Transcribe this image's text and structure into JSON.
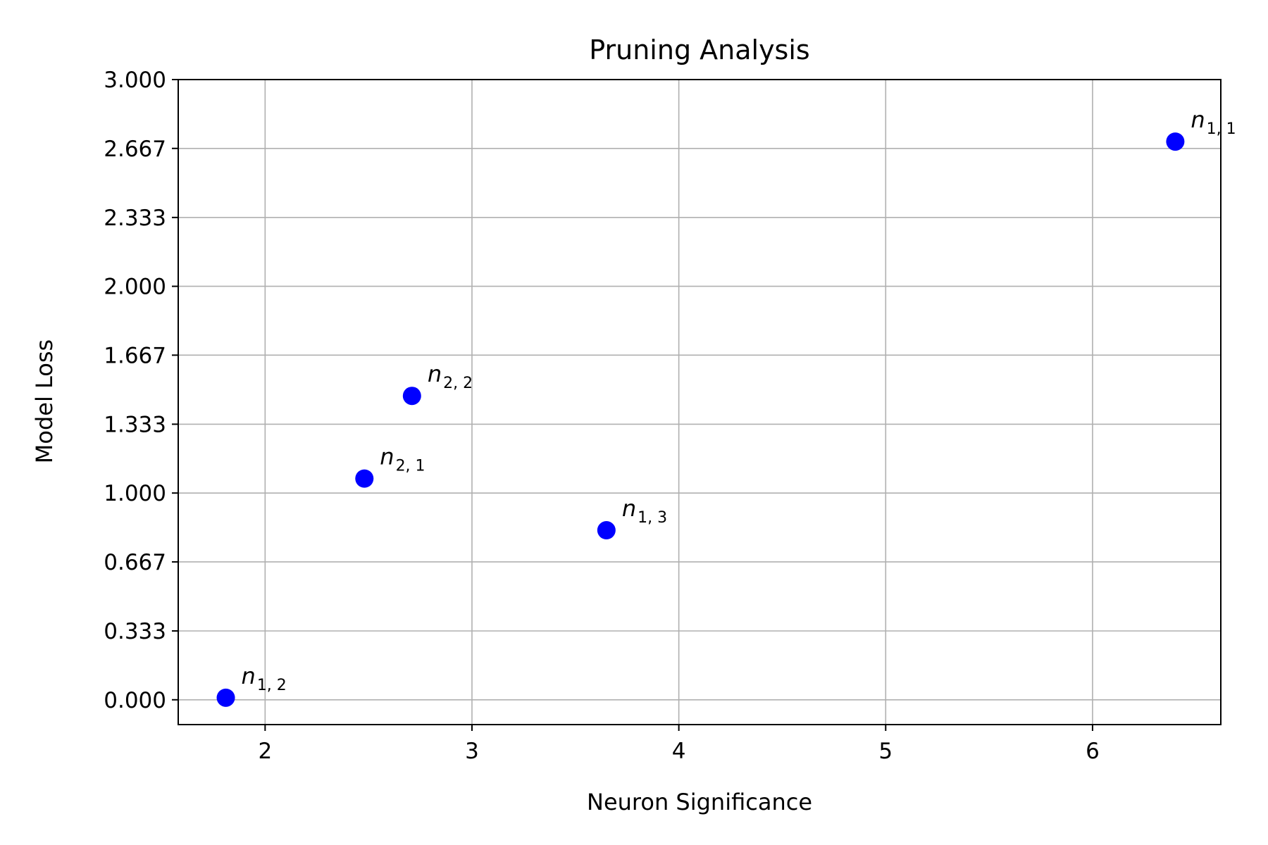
{
  "chart_data": {
    "type": "scatter",
    "title": "Pruning Analysis",
    "xlabel": "Neuron Significance",
    "ylabel": "Model Loss",
    "xlim": [
      1.58,
      6.62
    ],
    "ylim": [
      -0.12,
      3.0
    ],
    "xticks": [
      2,
      3,
      4,
      5,
      6
    ],
    "xtick_labels": [
      "2",
      "3",
      "4",
      "5",
      "6"
    ],
    "yticks": [
      0,
      0.333,
      0.667,
      1.0,
      1.333,
      1.667,
      2.0,
      2.333,
      2.667,
      3.0
    ],
    "ytick_labels": [
      "0.000",
      "0.333",
      "0.667",
      "1.000",
      "1.333",
      "1.667",
      "2.000",
      "2.333",
      "2.667",
      "3.000"
    ],
    "grid": true,
    "point_color": "#0000ff",
    "points": [
      {
        "x": 6.4,
        "y": 2.7,
        "label": "n",
        "sub": "1, 1"
      },
      {
        "x": 1.81,
        "y": 0.01,
        "label": "n",
        "sub": "1, 2"
      },
      {
        "x": 3.65,
        "y": 0.82,
        "label": "n",
        "sub": "1, 3"
      },
      {
        "x": 2.48,
        "y": 1.07,
        "label": "n",
        "sub": "2, 1"
      },
      {
        "x": 2.71,
        "y": 1.47,
        "label": "n",
        "sub": "2, 2"
      }
    ]
  }
}
